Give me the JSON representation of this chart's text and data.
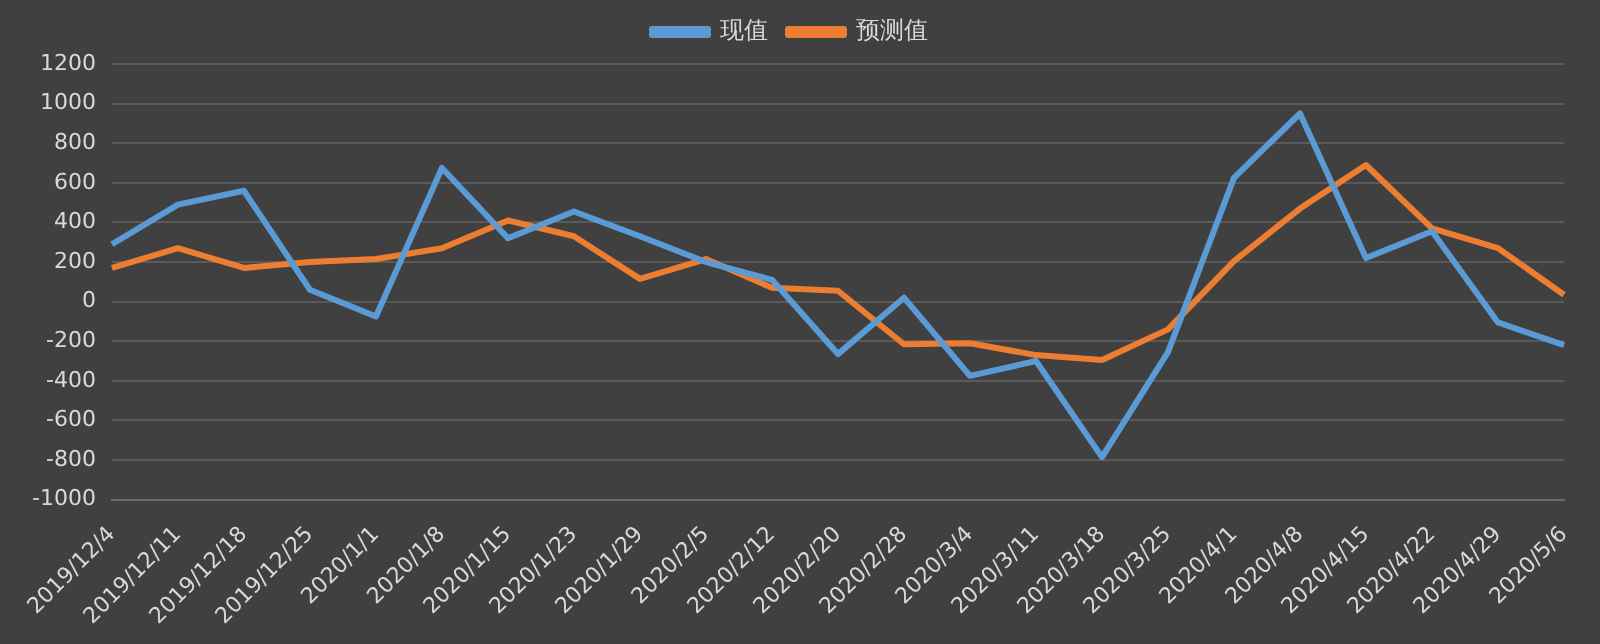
{
  "chart_data": {
    "type": "line",
    "categories": [
      "2019/12/4",
      "2019/12/11",
      "2019/12/18",
      "2019/12/25",
      "2020/1/1",
      "2020/1/8",
      "2020/1/15",
      "2020/1/23",
      "2020/1/29",
      "2020/2/5",
      "2020/2/12",
      "2020/2/20",
      "2020/2/28",
      "2020/3/4",
      "2020/3/11",
      "2020/3/18",
      "2020/3/25",
      "2020/4/1",
      "2020/4/8",
      "2020/4/15",
      "2020/4/22",
      "2020/4/29",
      "2020/5/6"
    ],
    "series": [
      {
        "name": "现值",
        "color": "#5b9bd5",
        "values": [
          290,
          490,
          560,
          60,
          -75,
          675,
          320,
          455,
          330,
          200,
          110,
          -265,
          20,
          -375,
          -300,
          -785,
          -255,
          625,
          950,
          220,
          355,
          -105,
          -220
        ]
      },
      {
        "name": "预测值",
        "color": "#ed7d31",
        "values": [
          170,
          270,
          170,
          200,
          215,
          270,
          410,
          330,
          115,
          215,
          70,
          55,
          -215,
          -210,
          -270,
          -295,
          -140,
          205,
          470,
          690,
          370,
          270,
          35
        ]
      }
    ],
    "ylim": [
      -1000,
      1200
    ],
    "yticks": [
      -1000,
      -800,
      -600,
      -400,
      -200,
      0,
      200,
      400,
      600,
      800,
      1000,
      1200
    ],
    "grid": "y",
    "legend": "top",
    "marker": "none",
    "line_style": "solid"
  }
}
